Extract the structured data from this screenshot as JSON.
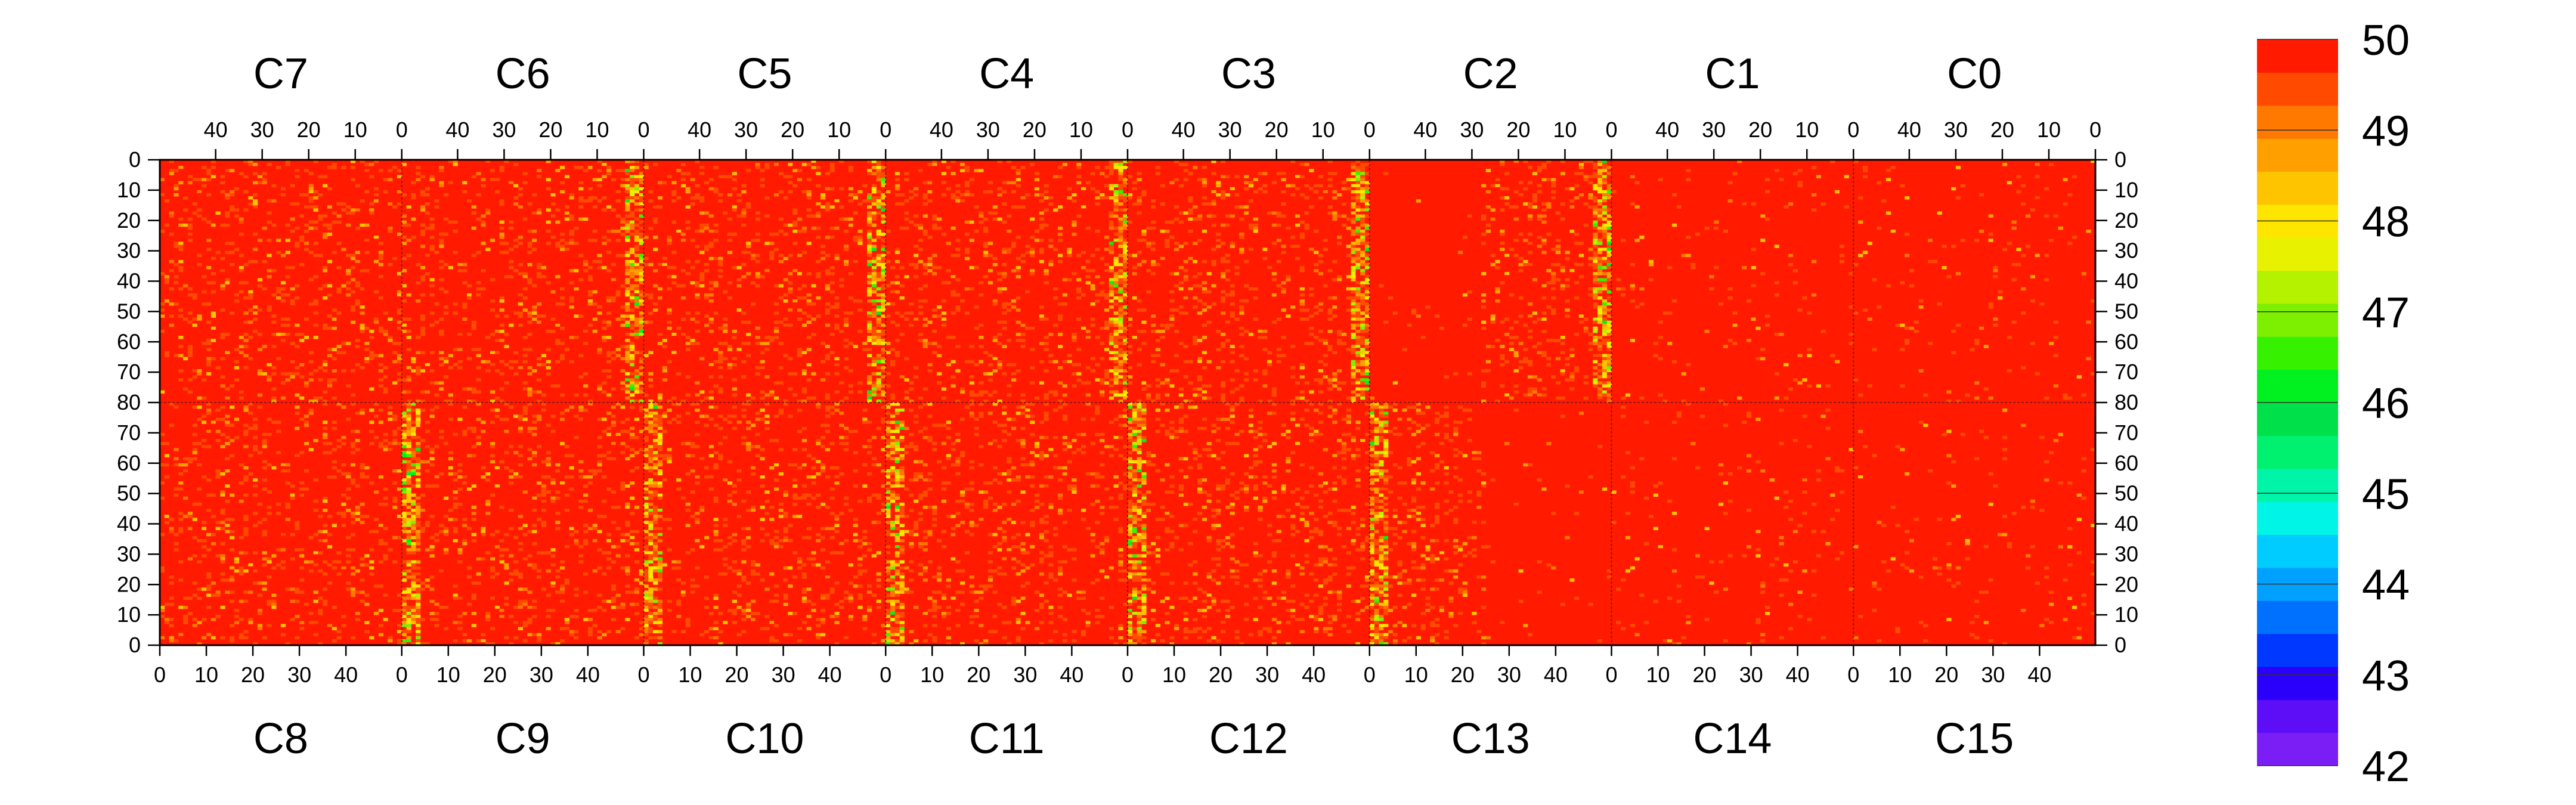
{
  "chart_data": {
    "type": "heatmap",
    "top_chips": [
      "C7",
      "C6",
      "C5",
      "C4",
      "C3",
      "C2",
      "C1",
      "C0"
    ],
    "bottom_chips": [
      "C8",
      "C9",
      "C10",
      "C11",
      "C12",
      "C13",
      "C14",
      "C15"
    ],
    "chip_columns": 52,
    "rows_per_half": 80,
    "x_tick_labels_bottom": [
      "0",
      "10",
      "20",
      "30",
      "40"
    ],
    "x_tick_labels_top": [
      "40",
      "30",
      "20",
      "10",
      "0"
    ],
    "y_tick_labels_top_half": [
      "0",
      "10",
      "20",
      "30",
      "40",
      "50",
      "60",
      "70",
      "80"
    ],
    "y_tick_labels_bottom_half": [
      "70",
      "60",
      "50",
      "40",
      "30",
      "20",
      "10",
      "0"
    ],
    "z_range": [
      42,
      50
    ],
    "colorbar_tick_labels": [
      "50",
      "49",
      "48",
      "47",
      "46",
      "45",
      "44",
      "43",
      "42"
    ],
    "colorbar_colors": [
      "#7A1EF5",
      "#5E0DF7",
      "#2A00FA",
      "#0038FF",
      "#0070FF",
      "#00A0FF",
      "#00CCFF",
      "#00F5E6",
      "#00F5A8",
      "#00F070",
      "#00E04A",
      "#00F020",
      "#36F200",
      "#7CF000",
      "#B4F200",
      "#E8F200",
      "#FFE600",
      "#FFC400",
      "#FFA000",
      "#FF7800",
      "#FF4A00",
      "#FF1A00"
    ],
    "base_value": 50,
    "dense_column_chips": [
      "C9",
      "C10",
      "C11",
      "C12",
      "C13"
    ],
    "flat_region_chips": [
      "C1",
      "C0",
      "C14",
      "C15"
    ],
    "title": "",
    "xlabel": "",
    "ylabel": "",
    "legend": "none"
  }
}
